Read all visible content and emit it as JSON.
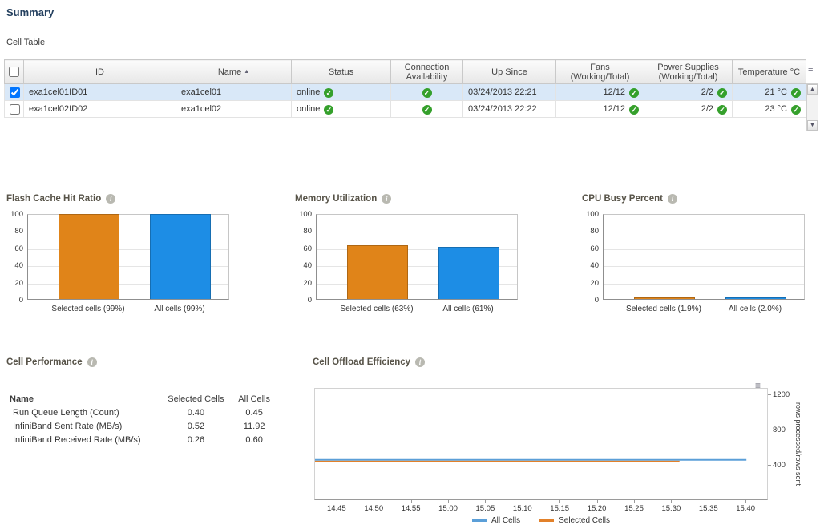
{
  "page": {
    "title": "Summary",
    "cell_table_label": "Cell Table"
  },
  "cell_table": {
    "columns": [
      {
        "key": "id",
        "label": "ID"
      },
      {
        "key": "name",
        "label": "Name",
        "sorted": "asc"
      },
      {
        "key": "status",
        "label": "Status"
      },
      {
        "key": "connection",
        "label": "Connection\nAvailability"
      },
      {
        "key": "up_since",
        "label": "Up Since"
      },
      {
        "key": "fans",
        "label": "Fans\n(Working/Total)"
      },
      {
        "key": "power",
        "label": "Power Supplies\n(Working/Total)"
      },
      {
        "key": "temperature",
        "label": "Temperature °C"
      }
    ],
    "rows": [
      {
        "selected": true,
        "id": "exa1cel01ID01",
        "name": "exa1cel01",
        "status": "online",
        "status_ok": true,
        "connection_ok": true,
        "up_since": "03/24/2013 22:21",
        "fans": "12/12",
        "fans_ok": true,
        "power": "2/2",
        "power_ok": true,
        "temperature": "21 °C",
        "temperature_ok": true
      },
      {
        "selected": false,
        "id": "exa1cel02ID02",
        "name": "exa1cel02",
        "status": "online",
        "status_ok": true,
        "connection_ok": true,
        "up_since": "03/24/2013 22:22",
        "fans": "12/12",
        "fans_ok": true,
        "power": "2/2",
        "power_ok": true,
        "temperature": "23 °C",
        "temperature_ok": true
      }
    ]
  },
  "chart_data": [
    {
      "type": "bar",
      "title": "Flash Cache Hit Ratio",
      "categories": [
        "Selected cells (99%)",
        "All cells (99%)"
      ],
      "values": [
        99,
        99
      ],
      "colors": [
        "#e08419",
        "#1d8de5"
      ],
      "yticks": [
        0,
        20,
        40,
        60,
        80,
        100
      ],
      "ylim": [
        0,
        100
      ]
    },
    {
      "type": "bar",
      "title": "Memory Utilization",
      "categories": [
        "Selected cells (63%)",
        "All cells (61%)"
      ],
      "values": [
        63,
        61
      ],
      "colors": [
        "#e08419",
        "#1d8de5"
      ],
      "yticks": [
        0,
        20,
        40,
        60,
        80,
        100
      ],
      "ylim": [
        0,
        100
      ]
    },
    {
      "type": "bar",
      "title": "CPU Busy Percent",
      "categories": [
        "Selected cells (1.9%)",
        "All cells (2.0%)"
      ],
      "values": [
        1.9,
        2.0
      ],
      "colors": [
        "#e08419",
        "#1d8de5"
      ],
      "yticks": [
        0,
        20,
        40,
        60,
        80,
        100
      ],
      "ylim": [
        0,
        100
      ]
    },
    {
      "type": "line",
      "title": "Cell Offload Efficiency",
      "ylabel": "rows processed/rows sent",
      "x_start": "14:42",
      "x_end": "15:43",
      "x_ticks": [
        "14:45",
        "14:50",
        "14:55",
        "15:00",
        "15:05",
        "15:10",
        "15:15",
        "15:20",
        "15:25",
        "15:30",
        "15:35",
        "15:40"
      ],
      "y_ticks": [
        400,
        800,
        1200
      ],
      "ylim": [
        0,
        1270
      ],
      "series": [
        {
          "name": "All Cells",
          "color": "#5b9fd8",
          "points": [
            {
              "x": "14:42",
              "y": 465
            },
            {
              "x": "15:40",
              "y": 465
            }
          ]
        },
        {
          "name": "Selected Cells",
          "color": "#e2812a",
          "points": [
            {
              "x": "14:42",
              "y": 445
            },
            {
              "x": "15:31",
              "y": 445
            }
          ]
        }
      ]
    }
  ],
  "cell_performance": {
    "title": "Cell Performance",
    "columns": [
      "Name",
      "Selected Cells",
      "All Cells"
    ],
    "rows": [
      {
        "name": "Run Queue Length (Count)",
        "selected": "0.40",
        "all": "0.45"
      },
      {
        "name": "InfiniBand Sent Rate (MB/s)",
        "selected": "0.52",
        "all": "11.92"
      },
      {
        "name": "InfiniBand Received Rate (MB/s)",
        "selected": "0.26",
        "all": "0.60"
      }
    ]
  }
}
